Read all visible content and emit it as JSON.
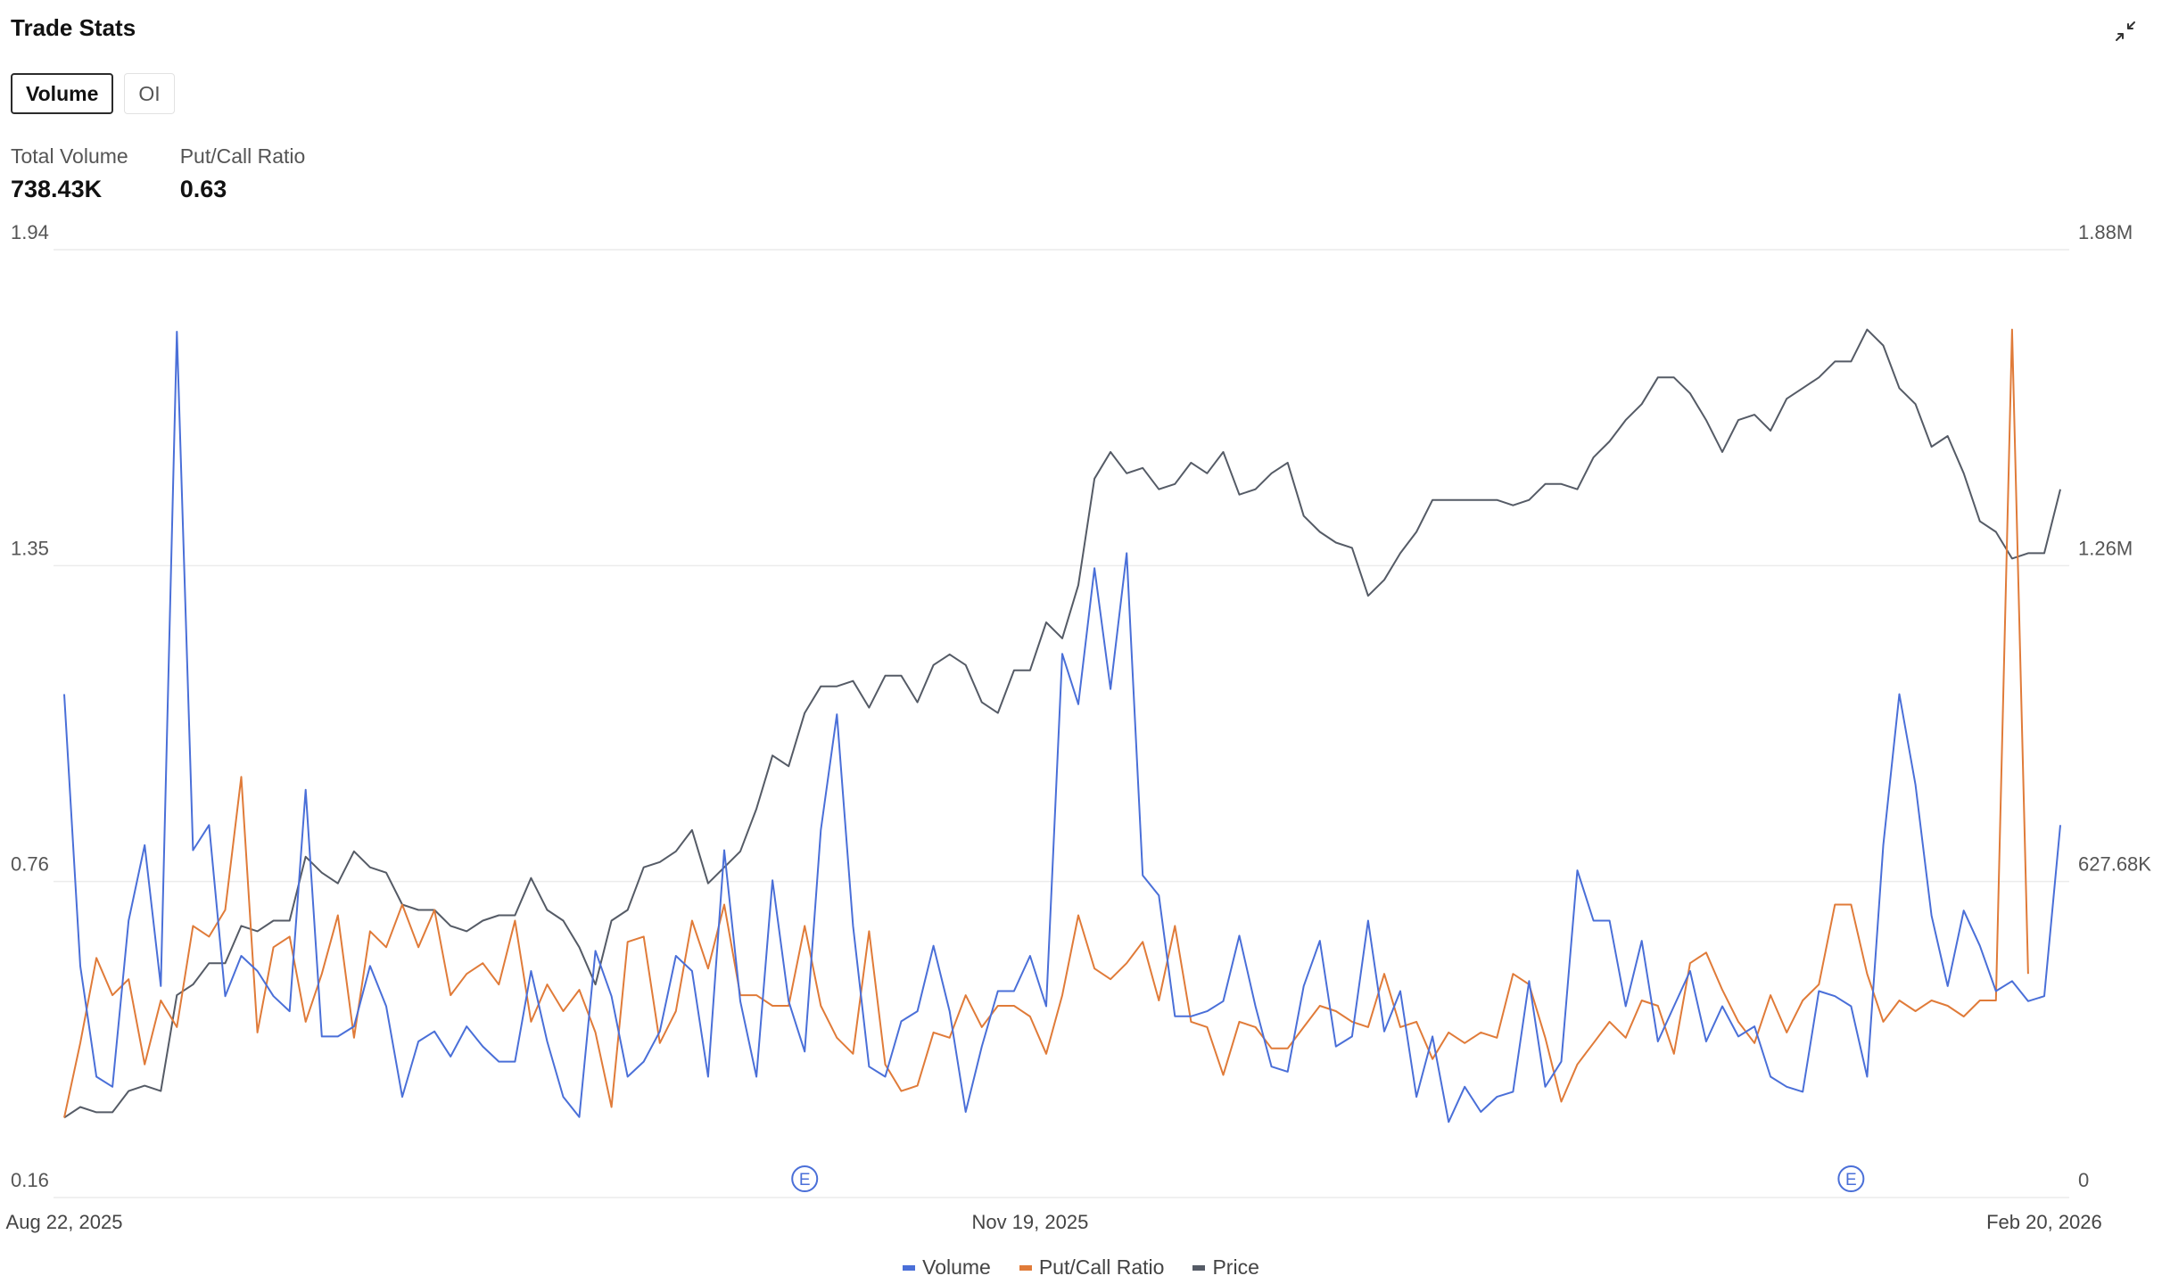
{
  "header": {
    "title": "Trade Stats",
    "collapse_icon": "collapse-arrows-icon"
  },
  "tabs": [
    {
      "label": "Volume",
      "active": true
    },
    {
      "label": "OI",
      "active": false
    }
  ],
  "stats": [
    {
      "label": "Total Volume",
      "value": "738.43K"
    },
    {
      "label": "Put/Call Ratio",
      "value": "0.63"
    }
  ],
  "colors": {
    "volume": "#4a6fd8",
    "put_call": "#e07b39",
    "price": "#555b66",
    "grid": "#ececec",
    "earnings": "#4a6fd8"
  },
  "chart_data": {
    "type": "line",
    "x_tick_labels": [
      "Aug 22, 2025",
      "Nov 19, 2025",
      "Feb 20, 2026"
    ],
    "x_tick_positions": [
      0,
      60,
      123
    ],
    "left_axis": {
      "ticks": [
        "1.94",
        "1.35",
        "0.76",
        "0.16"
      ],
      "range": [
        0.16,
        1.94
      ]
    },
    "right_axis": {
      "ticks": [
        "1.88M",
        "1.26M",
        "627.68K",
        "0"
      ],
      "range": [
        0,
        1883000
      ]
    },
    "grid": true,
    "legend_position": "bottom",
    "earnings_markers": [
      {
        "index": 46,
        "label": "E"
      },
      {
        "index": 111,
        "label": "E"
      }
    ],
    "series": [
      {
        "name": "Volume",
        "axis": "right",
        "color": "#4a6fd8",
        "values": [
          1000000,
          460000,
          240000,
          220000,
          550000,
          700000,
          420000,
          1720000,
          690000,
          740000,
          400000,
          480000,
          450000,
          400000,
          370000,
          810000,
          320000,
          320000,
          340000,
          460000,
          380000,
          200000,
          310000,
          330000,
          280000,
          340000,
          300000,
          270000,
          270000,
          450000,
          310000,
          200000,
          160000,
          490000,
          400000,
          240000,
          270000,
          330000,
          480000,
          450000,
          240000,
          690000,
          390000,
          240000,
          630000,
          390000,
          290000,
          730000,
          960000,
          540000,
          260000,
          240000,
          350000,
          370000,
          500000,
          370000,
          170000,
          300000,
          410000,
          410000,
          480000,
          380000,
          1080000,
          980000,
          1250000,
          1010000,
          1280000,
          640000,
          600000,
          360000,
          360000,
          370000,
          390000,
          520000,
          380000,
          260000,
          250000,
          420000,
          510000,
          300000,
          320000,
          550000,
          330000,
          410000,
          200000,
          320000,
          150000,
          220000,
          170000,
          200000,
          210000,
          430000,
          220000,
          270000,
          650000,
          550000,
          550000,
          380000,
          510000,
          310000,
          380000,
          450000,
          310000,
          380000,
          320000,
          340000,
          240000,
          220000,
          210000,
          410000,
          400000,
          380000,
          240000,
          700000,
          1000000,
          820000,
          560000,
          420000,
          570000,
          500000,
          410000,
          430000,
          390000,
          400000,
          740000
        ]
      },
      {
        "name": "Put/Call Ratio",
        "axis": "left",
        "color": "#e07b39",
        "values": [
          0.31,
          0.45,
          0.61,
          0.54,
          0.57,
          0.41,
          0.53,
          0.48,
          0.67,
          0.65,
          0.7,
          0.95,
          0.47,
          0.63,
          0.65,
          0.49,
          0.58,
          0.69,
          0.46,
          0.66,
          0.63,
          0.71,
          0.63,
          0.7,
          0.54,
          0.58,
          0.6,
          0.56,
          0.68,
          0.49,
          0.56,
          0.51,
          0.55,
          0.47,
          0.33,
          0.64,
          0.65,
          0.45,
          0.51,
          0.68,
          0.59,
          0.71,
          0.54,
          0.54,
          0.52,
          0.52,
          0.67,
          0.52,
          0.46,
          0.43,
          0.66,
          0.41,
          0.36,
          0.37,
          0.47,
          0.46,
          0.54,
          0.48,
          0.52,
          0.52,
          0.5,
          0.43,
          0.54,
          0.69,
          0.59,
          0.57,
          0.6,
          0.64,
          0.53,
          0.67,
          0.49,
          0.48,
          0.39,
          0.49,
          0.48,
          0.44,
          0.44,
          0.48,
          0.52,
          0.51,
          0.49,
          0.48,
          0.58,
          0.48,
          0.49,
          0.42,
          0.47,
          0.45,
          0.47,
          0.46,
          0.58,
          0.56,
          0.46,
          0.34,
          0.41,
          0.45,
          0.49,
          0.46,
          0.53,
          0.52,
          0.43,
          0.6,
          0.62,
          0.55,
          0.49,
          0.45,
          0.54,
          0.47,
          0.53,
          0.56,
          0.71,
          0.71,
          0.58,
          0.49,
          0.53,
          0.51,
          0.53,
          0.52,
          0.5,
          0.53,
          0.53,
          1.79,
          0.58
        ]
      },
      {
        "name": "Price",
        "axis": "left",
        "color": "#555b66",
        "values": [
          0.31,
          0.33,
          0.32,
          0.32,
          0.36,
          0.37,
          0.36,
          0.54,
          0.56,
          0.6,
          0.6,
          0.67,
          0.66,
          0.68,
          0.68,
          0.8,
          0.77,
          0.75,
          0.81,
          0.78,
          0.77,
          0.71,
          0.7,
          0.7,
          0.67,
          0.66,
          0.68,
          0.69,
          0.69,
          0.76,
          0.7,
          0.68,
          0.63,
          0.56,
          0.68,
          0.7,
          0.78,
          0.79,
          0.81,
          0.85,
          0.75,
          0.78,
          0.81,
          0.89,
          0.99,
          0.97,
          1.07,
          1.12,
          1.12,
          1.13,
          1.08,
          1.14,
          1.14,
          1.09,
          1.16,
          1.18,
          1.16,
          1.09,
          1.07,
          1.15,
          1.15,
          1.24,
          1.21,
          1.31,
          1.51,
          1.56,
          1.52,
          1.53,
          1.49,
          1.5,
          1.54,
          1.52,
          1.56,
          1.48,
          1.49,
          1.52,
          1.54,
          1.44,
          1.41,
          1.39,
          1.38,
          1.29,
          1.32,
          1.37,
          1.41,
          1.47,
          1.47,
          1.47,
          1.47,
          1.47,
          1.46,
          1.47,
          1.5,
          1.5,
          1.49,
          1.55,
          1.58,
          1.62,
          1.65,
          1.7,
          1.7,
          1.67,
          1.62,
          1.56,
          1.62,
          1.63,
          1.6,
          1.66,
          1.68,
          1.7,
          1.73,
          1.73,
          1.79,
          1.76,
          1.68,
          1.65,
          1.57,
          1.59,
          1.52,
          1.43,
          1.41,
          1.36,
          1.37,
          1.37,
          1.49
        ]
      }
    ]
  }
}
